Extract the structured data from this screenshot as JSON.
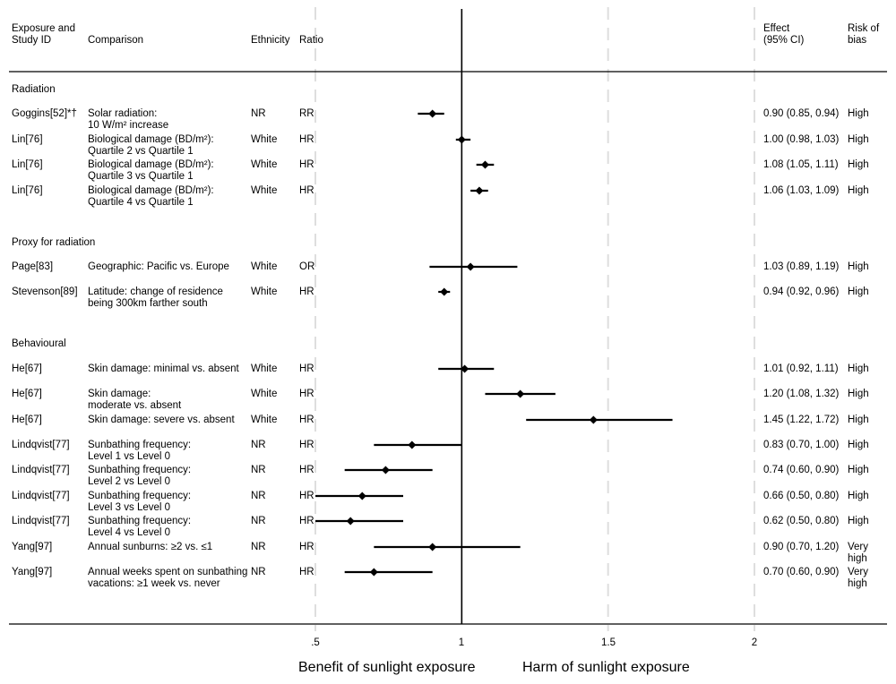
{
  "headers": {
    "study": "Exposure and\nStudy ID",
    "comparison": "Comparison",
    "ethnicity": "Ethnicity",
    "ratio": "Ratio",
    "effect": "Effect\n(95% CI)",
    "risk": "Risk of\nbias"
  },
  "chart_data": {
    "type": "forest",
    "x_axis": {
      "range": [
        0.5,
        2.0
      ],
      "ticks": [
        0.5,
        1,
        1.5,
        2
      ],
      "tick_labels": [
        ".5",
        "1",
        "1.5",
        "2"
      ],
      "reference_line": 1
    },
    "xlabel_left": "Benefit of sunlight exposure",
    "xlabel_right": "Harm of sunlight exposure",
    "sections": [
      {
        "label": "Radiation",
        "rows": [
          {
            "study": "Goggins[52]*†",
            "comparison": "Solar radiation:\n10 W/m² increase",
            "ethnicity": "NR",
            "ratio": "RR",
            "est": 0.9,
            "lo": 0.85,
            "hi": 0.94,
            "effect": "0.90 (0.85, 0.94)",
            "risk": "High"
          },
          {
            "study": "Lin[76]",
            "comparison": "Biological damage (BD/m²):\nQuartile 2 vs Quartile 1",
            "ethnicity": "White",
            "ratio": "HR",
            "est": 1.0,
            "lo": 0.98,
            "hi": 1.03,
            "effect": "1.00 (0.98, 1.03)",
            "risk": "High"
          },
          {
            "study": "Lin[76]",
            "comparison": "Biological damage (BD/m²):\nQuartile 3 vs Quartile 1",
            "ethnicity": "White",
            "ratio": "HR",
            "est": 1.08,
            "lo": 1.05,
            "hi": 1.11,
            "effect": "1.08 (1.05, 1.11)",
            "risk": "High"
          },
          {
            "study": "Lin[76]",
            "comparison": "Biological damage (BD/m²):\nQuartile 4 vs Quartile 1",
            "ethnicity": "White",
            "ratio": "HR",
            "est": 1.06,
            "lo": 1.03,
            "hi": 1.09,
            "effect": "1.06 (1.03, 1.09)",
            "risk": "High"
          }
        ]
      },
      {
        "label": "Proxy for radiation",
        "rows": [
          {
            "study": "Page[83]",
            "comparison": "Geographic: Pacific vs. Europe",
            "ethnicity": "White",
            "ratio": "OR",
            "est": 1.03,
            "lo": 0.89,
            "hi": 1.19,
            "effect": "1.03 (0.89, 1.19)",
            "risk": "High"
          },
          {
            "study": "Stevenson[89]",
            "comparison": "Latitude: change of residence\nbeing 300km farther south",
            "ethnicity": "White",
            "ratio": "HR",
            "est": 0.94,
            "lo": 0.92,
            "hi": 0.96,
            "effect": "0.94 (0.92, 0.96)",
            "risk": "High"
          }
        ]
      },
      {
        "label": "Behavioural",
        "rows": [
          {
            "study": "He[67]",
            "comparison": "Skin damage: minimal vs. absent",
            "ethnicity": "White",
            "ratio": "HR",
            "est": 1.01,
            "lo": 0.92,
            "hi": 1.11,
            "effect": "1.01 (0.92, 1.11)",
            "risk": "High"
          },
          {
            "study": "He[67]",
            "comparison": "Skin damage:\nmoderate vs. absent",
            "ethnicity": "White",
            "ratio": "HR",
            "est": 1.2,
            "lo": 1.08,
            "hi": 1.32,
            "effect": "1.20 (1.08, 1.32)",
            "risk": "High"
          },
          {
            "study": "He[67]",
            "comparison": "Skin damage: severe vs. absent",
            "ethnicity": "White",
            "ratio": "HR",
            "est": 1.45,
            "lo": 1.22,
            "hi": 1.72,
            "effect": "1.45 (1.22, 1.72)",
            "risk": "High"
          },
          {
            "study": "Lindqvist[77]",
            "comparison": "Sunbathing frequency:\nLevel 1 vs Level 0",
            "ethnicity": "NR",
            "ratio": "HR",
            "est": 0.83,
            "lo": 0.7,
            "hi": 1.0,
            "effect": "0.83 (0.70, 1.00)",
            "risk": "High"
          },
          {
            "study": "Lindqvist[77]",
            "comparison": "Sunbathing frequency:\nLevel 2 vs Level 0",
            "ethnicity": "NR",
            "ratio": "HR",
            "est": 0.74,
            "lo": 0.6,
            "hi": 0.9,
            "effect": "0.74 (0.60, 0.90)",
            "risk": "High"
          },
          {
            "study": "Lindqvist[77]",
            "comparison": "Sunbathing frequency:\nLevel 3 vs Level 0",
            "ethnicity": "NR",
            "ratio": "HR",
            "est": 0.66,
            "lo": 0.5,
            "hi": 0.8,
            "effect": "0.66 (0.50, 0.80)",
            "risk": "High"
          },
          {
            "study": "Lindqvist[77]",
            "comparison": "Sunbathing frequency:\nLevel 4 vs Level 0",
            "ethnicity": "NR",
            "ratio": "HR",
            "est": 0.62,
            "lo": 0.5,
            "hi": 0.8,
            "effect": "0.62 (0.50, 0.80)",
            "risk": "High"
          },
          {
            "study": "Yang[97]",
            "comparison": "Annual sunburns: ≥2 vs. ≤1",
            "ethnicity": "NR",
            "ratio": "HR",
            "est": 0.9,
            "lo": 0.7,
            "hi": 1.2,
            "effect": "0.90 (0.70, 1.20)",
            "risk": "Very\nhigh"
          },
          {
            "study": "Yang[97]",
            "comparison": "Annual weeks spent on sunbathing\nvacations: ≥1 week vs. never",
            "ethnicity": "NR",
            "ratio": "HR",
            "est": 0.7,
            "lo": 0.6,
            "hi": 0.9,
            "effect": "0.70 (0.60, 0.90)",
            "risk": "Very\nhigh"
          }
        ]
      }
    ]
  }
}
